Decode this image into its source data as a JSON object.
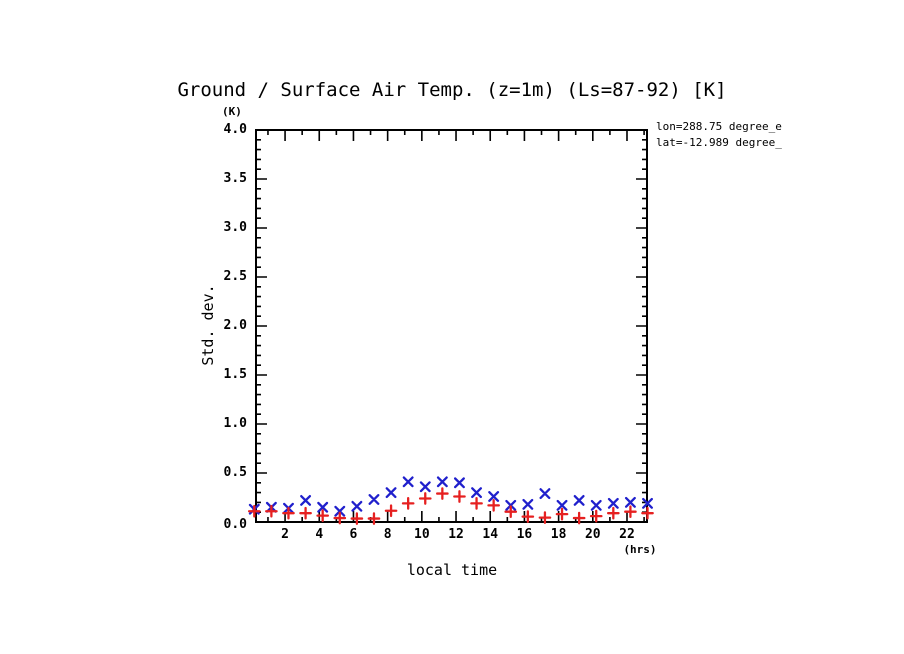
{
  "page": {
    "background": "#ffffff",
    "frame_color": "#000000"
  },
  "annotations": {
    "lon": "lon=288.75 degree_e",
    "lat": "lat=-12.989 degree_"
  },
  "chart_data": {
    "type": "scatter",
    "title": "Ground / Surface Air Temp. (z=1m) (Ls=87-92) [K]",
    "xlabel": "local time",
    "x_unit": "(hrs)",
    "ylabel": "Std. dev.",
    "y_unit": "(K)",
    "xlim": [
      0.3,
      23.17
    ],
    "ylim": [
      0.0,
      4.0
    ],
    "x_major_ticks": [
      2,
      4,
      6,
      8,
      10,
      12,
      14,
      16,
      18,
      20,
      22
    ],
    "x_tick_labels": [
      "2",
      "4",
      "6",
      "8",
      "10",
      "12",
      "14",
      "16",
      "18",
      "20",
      "22"
    ],
    "x_minor_step": 1,
    "y_major_ticks": [
      0.0,
      0.5,
      1.0,
      1.5,
      2.0,
      2.5,
      3.0,
      3.5,
      4.0
    ],
    "y_tick_labels": [
      "0.0",
      "0.5",
      "1.0",
      "1.5",
      "2.0",
      "2.5",
      "3.0",
      "3.5",
      "4.0"
    ],
    "y_minor_step": 0.1,
    "grid": false,
    "legend": "none",
    "x": [
      0.2,
      1.2,
      2.2,
      3.2,
      4.2,
      5.2,
      6.2,
      7.2,
      8.2,
      9.2,
      10.2,
      11.2,
      12.2,
      13.2,
      14.2,
      15.2,
      16.2,
      17.2,
      18.2,
      19.2,
      20.2,
      21.2,
      22.2,
      23.2
    ],
    "series": [
      {
        "name": "blue-x-series",
        "marker": "x",
        "color": "#2020cc",
        "values": [
          0.13,
          0.15,
          0.14,
          0.22,
          0.15,
          0.11,
          0.16,
          0.23,
          0.3,
          0.41,
          0.36,
          0.41,
          0.4,
          0.3,
          0.26,
          0.17,
          0.18,
          0.29,
          0.17,
          0.22,
          0.17,
          0.19,
          0.2,
          0.19
        ]
      },
      {
        "name": "red-plus-series",
        "marker": "+",
        "color": "#e62020",
        "values": [
          0.11,
          0.11,
          0.09,
          0.09,
          0.065,
          0.04,
          0.035,
          0.035,
          0.115,
          0.19,
          0.24,
          0.29,
          0.26,
          0.19,
          0.17,
          0.105,
          0.055,
          0.045,
          0.08,
          0.04,
          0.06,
          0.09,
          0.105,
          0.09
        ]
      }
    ]
  }
}
